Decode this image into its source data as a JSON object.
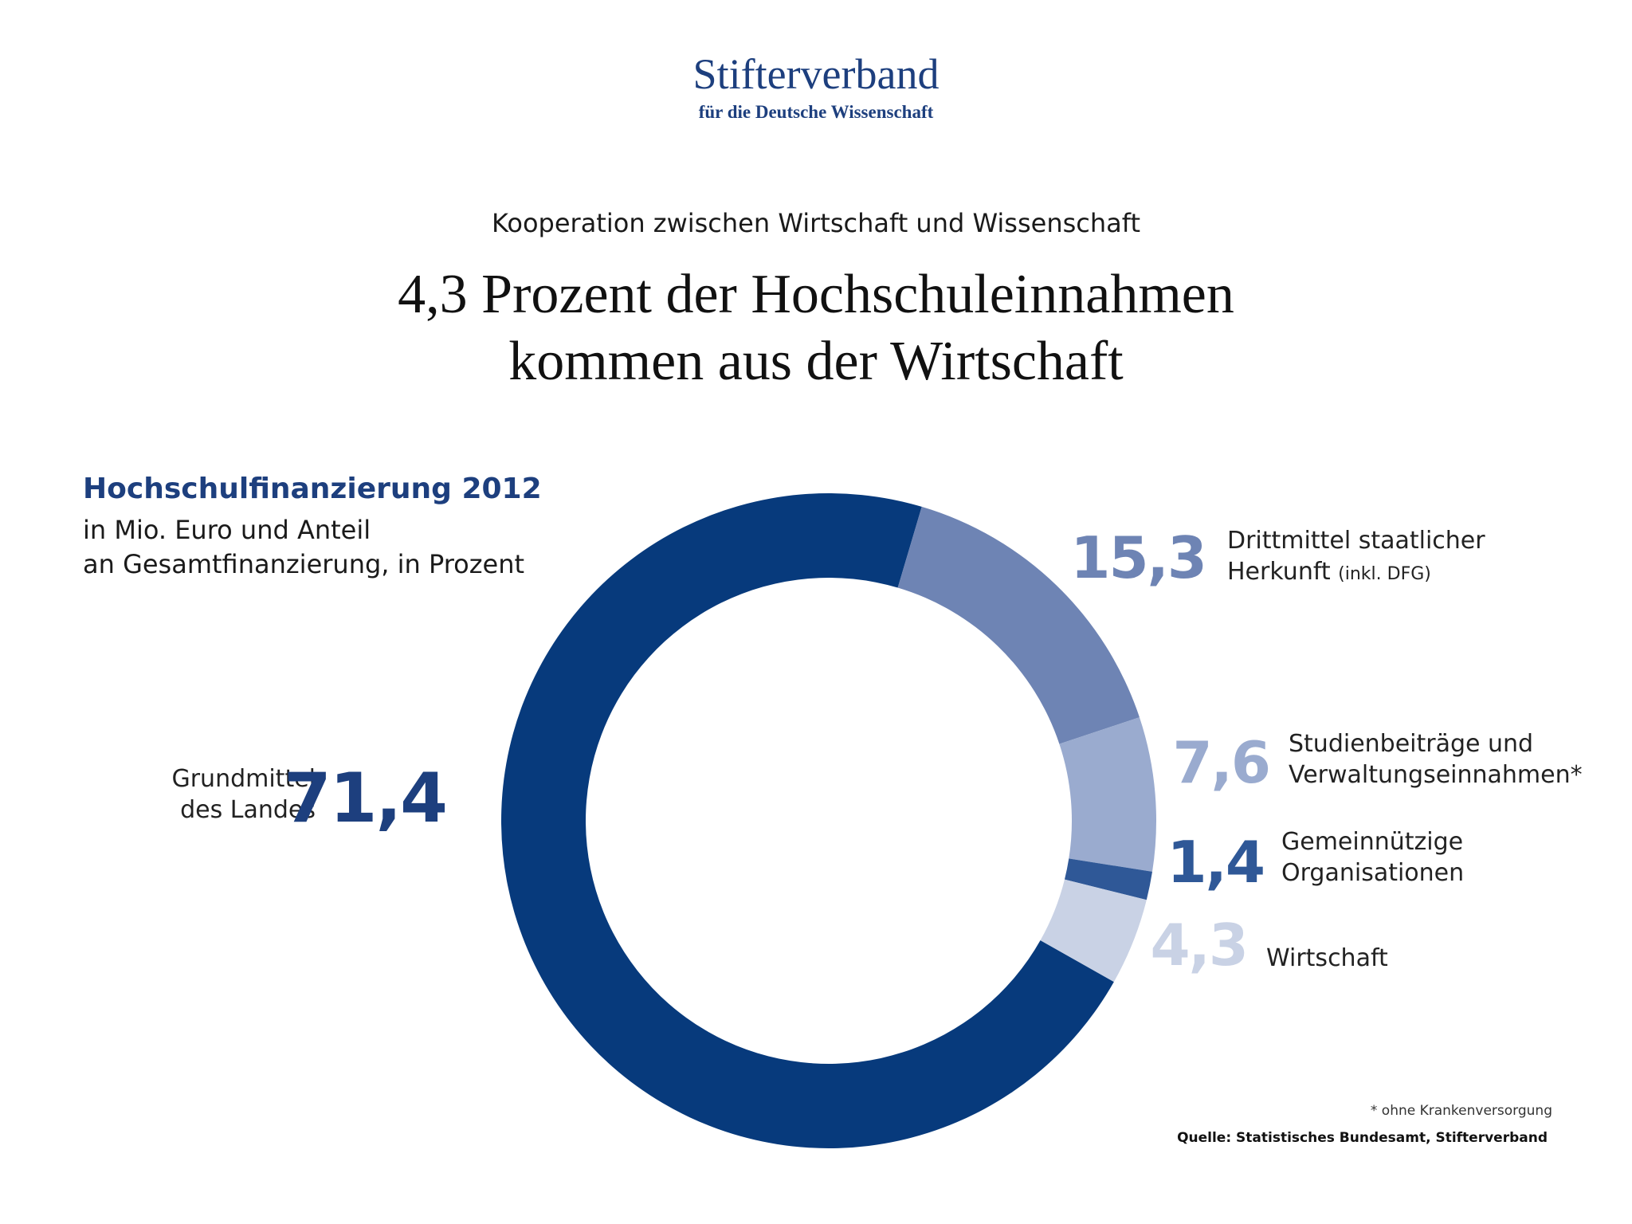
{
  "logo": {
    "name": "Stifterverband",
    "tagline": "für die Deutsche Wissenschaft"
  },
  "header": {
    "subtitle": "Kooperation zwischen Wirtschaft und Wissenschaft",
    "headline_line1": "4,3 Prozent der Hochschuleinnahmen",
    "headline_line2": "kommen aus der Wirtschaft"
  },
  "panel": {
    "title": "Hochschulfinanzierung 2012",
    "desc_line1": "in Mio. Euro und Anteil",
    "desc_line2": "an Gesamtfinanzierung, in Prozent"
  },
  "segments": [
    {
      "value_label": "71,4",
      "label_line1": "Grundmittel",
      "label_line2": "des Landes",
      "label_note": ""
    },
    {
      "value_label": "15,3",
      "label_line1": "Drittmittel staatlicher",
      "label_line2": "Herkunft",
      "label_note": "(inkl. DFG)"
    },
    {
      "value_label": "7,6",
      "label_line1": "Studienbeiträge und",
      "label_line2": "Verwaltungseinnahmen*",
      "label_note": ""
    },
    {
      "value_label": "1,4",
      "label_line1": "Gemeinnützige",
      "label_line2": "Organisationen",
      "label_note": ""
    },
    {
      "value_label": "4,3",
      "label_line1": "Wirtschaft",
      "label_line2": "",
      "label_note": ""
    }
  ],
  "footnote": "* ohne Krankenversorgung",
  "source": "Quelle: Statistisches Bundesamt, Stifterverband",
  "colors": {
    "dark_blue": "#073a7c",
    "blue_mid": "#6e84b4",
    "blue_light": "#9aabcf",
    "blue_dark2": "#2f5897",
    "blue_pale": "#c9d2e5"
  },
  "chart_data": {
    "type": "pie",
    "donut": true,
    "title": "Hochschulfinanzierung 2012",
    "unit": "Prozent",
    "categories": [
      "Grundmittel des Landes",
      "Drittmittel staatlicher Herkunft (inkl. DFG)",
      "Studienbeiträge und Verwaltungseinnahmen*",
      "Gemeinnützige Organisationen",
      "Wirtschaft"
    ],
    "values": [
      71.4,
      15.3,
      7.6,
      1.4,
      4.3
    ],
    "colors": [
      "#073a7c",
      "#6e84b4",
      "#9aabcf",
      "#2f5897",
      "#c9d2e5"
    ]
  }
}
